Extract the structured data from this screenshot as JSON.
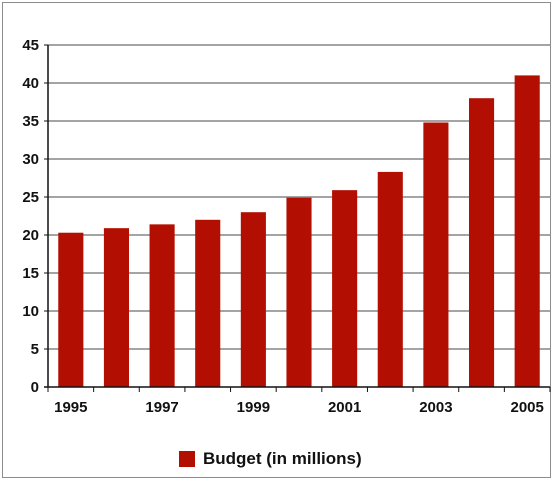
{
  "chart_data": {
    "type": "bar",
    "title": "",
    "xlabel": "",
    "ylabel": "",
    "categories": [
      "1995",
      "1996",
      "1997",
      "1998",
      "1999",
      "2000",
      "2001",
      "2002",
      "2003",
      "2004",
      "2005"
    ],
    "x_tick_labels": [
      "1995",
      "",
      "1997",
      "",
      "1999",
      "",
      "2001",
      "",
      "2003",
      "",
      "2005"
    ],
    "series": [
      {
        "name": "Budget (in millions)",
        "values": [
          20.3,
          20.9,
          21.4,
          22.0,
          23.0,
          24.9,
          25.9,
          28.3,
          34.8,
          38.0,
          41.0
        ]
      }
    ],
    "ylim": [
      0,
      45
    ],
    "y_ticks": [
      0,
      5,
      10,
      15,
      20,
      25,
      30,
      35,
      40,
      45
    ],
    "grid": true,
    "legend": "bottom",
    "colors": {
      "bar": "#b20e02",
      "grid": "#4a4a4a"
    }
  }
}
